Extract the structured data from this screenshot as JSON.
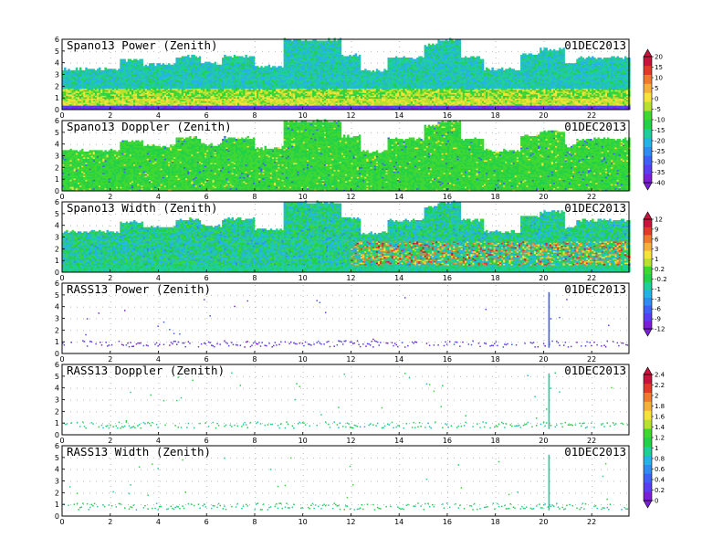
{
  "colors": {
    "frame": "#000000",
    "grid_dots": "#b8b8b8",
    "power_scale": [
      "#7a1fd6",
      "#5a3df0",
      "#3f5ff5",
      "#2f8cf0",
      "#25b3e6",
      "#1fcf9a",
      "#22d04a",
      "#3fd830",
      "#b8e030",
      "#f5e23a",
      "#f4b03a",
      "#ef7a2e",
      "#e23a2a",
      "#c8143c"
    ],
    "width_scale": [
      "#7a1fd6",
      "#5a3df0",
      "#3f5ff5",
      "#2f8cf0",
      "#25b3e6",
      "#1fcf9a",
      "#22d04a",
      "#3fd830",
      "#b8e030",
      "#f5e23a",
      "#f4b03a",
      "#ef7a2e",
      "#e23a2a",
      "#c8143c"
    ],
    "rass_scale": [
      "#7a1fd6",
      "#5a3df0",
      "#3f5ff5",
      "#2f8cf0",
      "#25b3e6",
      "#1fcf9a",
      "#22d04a",
      "#3fd830",
      "#b8e030",
      "#f5e23a",
      "#f4b03a",
      "#ef7a2e",
      "#e23a2a",
      "#c8143c"
    ]
  },
  "chart_data": [
    {
      "type": "heatmap",
      "title": "Spano13 Power (Zenith)",
      "date": "01DEC2013",
      "x_ticks": [
        "0",
        "2",
        "4",
        "6",
        "8",
        "10",
        "12",
        "14",
        "16",
        "18",
        "20",
        "22"
      ],
      "y_ticks": [
        "0",
        "1",
        "2",
        "3",
        "4",
        "5",
        "6"
      ],
      "xlim": [
        0,
        24
      ],
      "ylim": [
        0,
        6
      ],
      "colorbar_ticks": [
        "20",
        "15",
        "10",
        "5",
        "0",
        "-5",
        "-10",
        "-15",
        "-20",
        "-25",
        "-30",
        "-35",
        "-40"
      ],
      "colorbar_range": [
        -42,
        22
      ],
      "description_values": "Signal returns near 1 km strong; coverage up to ~3-4.5 km typical, ~6 km near 10-11 h and 15-16 h"
    },
    {
      "type": "heatmap",
      "title": "Spano13 Doppler (Zenith)",
      "date": "01DEC2013",
      "x_ticks": [
        "0",
        "2",
        "4",
        "6",
        "8",
        "10",
        "12",
        "14",
        "16",
        "18",
        "20",
        "22"
      ],
      "y_ticks": [
        "0",
        "1",
        "2",
        "3",
        "4",
        "5",
        "6"
      ],
      "xlim": [
        0,
        24
      ],
      "ylim": [
        0,
        6
      ]
    },
    {
      "type": "heatmap",
      "title": "Spano13 Width (Zenith)",
      "date": "01DEC2013",
      "x_ticks": [
        "0",
        "2",
        "4",
        "6",
        "8",
        "10",
        "12",
        "14",
        "16",
        "18",
        "20",
        "22"
      ],
      "y_ticks": [
        "0",
        "1",
        "2",
        "3",
        "4",
        "5",
        "6"
      ],
      "xlim": [
        0,
        24
      ],
      "ylim": [
        0,
        6
      ],
      "colorbar_ticks": [
        "12",
        "9",
        "6",
        "3",
        "1",
        "0.2",
        "-0.2",
        "-1",
        "-3",
        "-6",
        "-9",
        "-12"
      ]
    },
    {
      "type": "scatter",
      "title": "RASS13 Power (Zenith)",
      "date": "01DEC2013",
      "x_ticks": [
        "0",
        "2",
        "4",
        "6",
        "8",
        "10",
        "12",
        "14",
        "16",
        "18",
        "20",
        "22"
      ],
      "y_ticks": [
        "0",
        "1",
        "2",
        "3",
        "4",
        "5",
        "6"
      ],
      "xlim": [
        0,
        24
      ],
      "ylim": [
        0,
        6
      ]
    },
    {
      "type": "scatter",
      "title": "RASS13 Doppler (Zenith)",
      "date": "01DEC2013",
      "x_ticks": [
        "0",
        "2",
        "4",
        "6",
        "8",
        "10",
        "12",
        "14",
        "16",
        "18",
        "20",
        "22"
      ],
      "y_ticks": [
        "0",
        "1",
        "2",
        "3",
        "4",
        "5",
        "6"
      ],
      "xlim": [
        0,
        24
      ],
      "ylim": [
        0,
        6
      ],
      "colorbar_ticks": [
        "2.4",
        "2.2",
        "2",
        "1.8",
        "1.6",
        "1.4",
        "1.2",
        "1",
        "0.8",
        "0.6",
        "0.4",
        "0.2",
        "0"
      ]
    },
    {
      "type": "scatter",
      "title": "RASS13 Width (Zenith)",
      "date": "01DEC2013",
      "x_ticks": [
        "0",
        "2",
        "4",
        "6",
        "8",
        "10",
        "12",
        "14",
        "16",
        "18",
        "20",
        "22"
      ],
      "y_ticks": [
        "0",
        "1",
        "2",
        "3",
        "4",
        "5",
        "6"
      ],
      "xlim": [
        0,
        24
      ],
      "ylim": [
        0,
        6
      ]
    }
  ]
}
